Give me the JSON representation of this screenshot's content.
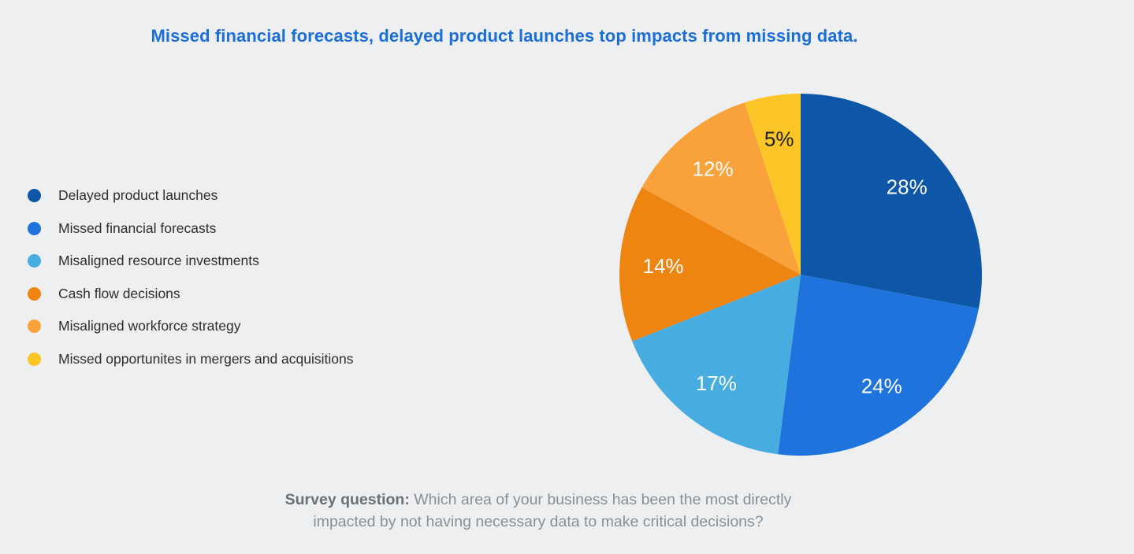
{
  "page": {
    "title": "Missed financial forecasts, delayed product launches top impacts from missing data.",
    "background": "#edeff0",
    "title_color": "#1c6fd9"
  },
  "chart_data": {
    "type": "pie",
    "title": "Missed financial forecasts, delayed product launches top impacts from missing data.",
    "unit": "%",
    "direction": "clockwise",
    "start_angle": "top",
    "legend_position": "left",
    "slices": [
      {
        "label": "Delayed product launches",
        "value": 28,
        "color": "#0e57a8",
        "text_color": "#ffffff"
      },
      {
        "label": "Missed financial forecasts",
        "value": 24,
        "color": "#1e74dc",
        "text_color": "#ffffff"
      },
      {
        "label": "Misaligned resource investments",
        "value": 17,
        "color": "#47ace0",
        "text_color": "#ffffff"
      },
      {
        "label": "Cash flow decisions",
        "value": 14,
        "color": "#ef8511",
        "text_color": "#ffffff"
      },
      {
        "label": "Misaligned workforce strategy",
        "value": 12,
        "color": "#f9a23c",
        "text_color": "#ffffff"
      },
      {
        "label": "Missed opportunites in mergers and acquisitions",
        "value": 5,
        "color": "#fbc525",
        "text_color": "#1f2021"
      }
    ]
  },
  "footer": {
    "line1_bold": "Survey question:",
    "line1_text": " Which area of your business has been the most directly",
    "line2": "impacted by not having necessary data to make critical decisions?"
  }
}
